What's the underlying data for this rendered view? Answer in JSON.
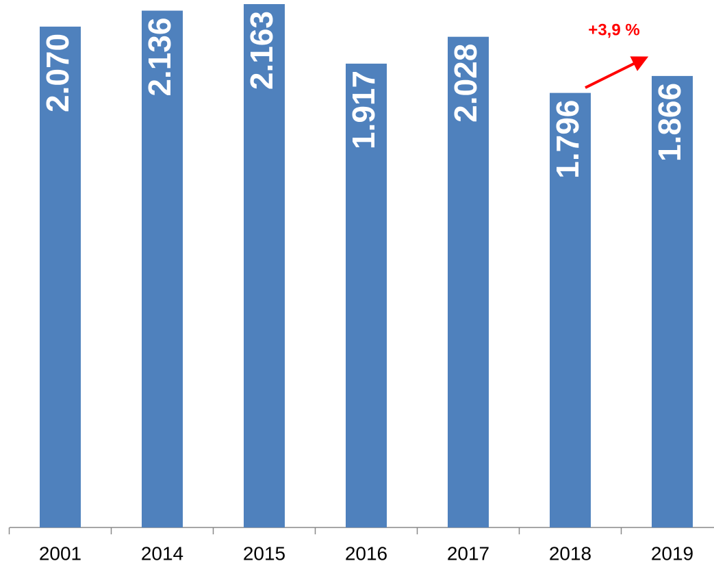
{
  "chart_data": {
    "type": "bar",
    "categories": [
      "2001",
      "2014",
      "2015",
      "2016",
      "2017",
      "2018",
      "2019"
    ],
    "values": [
      2070,
      2136,
      2163,
      1917,
      2028,
      1796,
      1866
    ],
    "value_labels": [
      "2.070",
      "2.136",
      "2.163",
      "1.917",
      "2.028",
      "1.796",
      "1.866"
    ],
    "color": "#4f81bd",
    "ylim": [
      0,
      2180
    ],
    "annotation": "+3,9 %"
  }
}
